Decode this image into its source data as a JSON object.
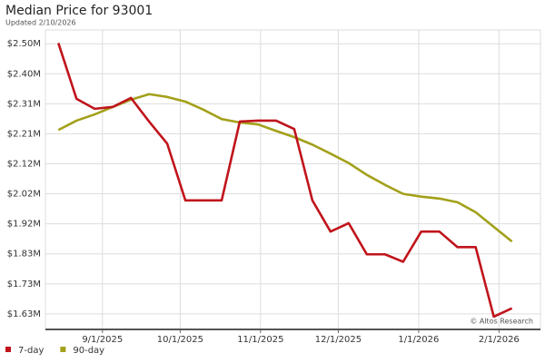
{
  "chart_data": {
    "type": "line",
    "title": "Median Price for 93001",
    "subtitle": "Updated 2/10/2026",
    "annotation": "© Altos Research",
    "x": [
      "2025-08-15",
      "2025-08-22",
      "2025-08-29",
      "2025-09-05",
      "2025-09-12",
      "2025-09-19",
      "2025-09-26",
      "2025-10-03",
      "2025-10-10",
      "2025-10-17",
      "2025-10-24",
      "2025-10-31",
      "2025-11-07",
      "2025-11-14",
      "2025-11-21",
      "2025-11-28",
      "2025-12-05",
      "2025-12-12",
      "2025-12-19",
      "2025-12-26",
      "2026-01-02",
      "2026-01-09",
      "2026-01-16",
      "2026-01-23",
      "2026-01-30",
      "2026-02-06"
    ],
    "series": [
      {
        "name": "7-day",
        "color": "#c0141c",
        "values": [
          2503000,
          2324000,
          2292000,
          2298000,
          2327000,
          2251000,
          2180000,
          1998000,
          1998000,
          1998000,
          2251000,
          2254000,
          2254000,
          2227000,
          1998000,
          1898000,
          1925000,
          1825000,
          1825000,
          1801000,
          1898000,
          1898000,
          1848000,
          1848000,
          1625000,
          1652000
        ]
      },
      {
        "name": "90-day",
        "color": "#a3a01a",
        "values": [
          2224000,
          2254000,
          2274000,
          2298000,
          2321000,
          2339000,
          2330000,
          2315000,
          2289000,
          2259000,
          2248000,
          2242000,
          2221000,
          2201000,
          2177000,
          2148000,
          2118000,
          2080000,
          2048000,
          2019000,
          2010000,
          2004000,
          1992000,
          1960000,
          1913000,
          1866000
        ]
      }
    ],
    "xlim": [
      "2025-08-10",
      "2026-02-17"
    ],
    "xticks": [
      {
        "value": "2025-09-01",
        "label": "9/1/2025"
      },
      {
        "value": "2025-10-01",
        "label": "10/1/2025"
      },
      {
        "value": "2025-11-01",
        "label": "11/1/2025"
      },
      {
        "value": "2025-12-01",
        "label": "12/1/2025"
      },
      {
        "value": "2026-01-01",
        "label": "1/1/2026"
      },
      {
        "value": "2026-02-01",
        "label": "2/1/2026"
      }
    ],
    "ylim": [
      1584000,
      2545000
    ],
    "yticks": [
      {
        "value": 1634000,
        "label": "$1.63M"
      },
      {
        "value": 1730300,
        "label": "$1.73M"
      },
      {
        "value": 1826600,
        "label": "$1.83M"
      },
      {
        "value": 1922900,
        "label": "$1.92M"
      },
      {
        "value": 2019200,
        "label": "$2.02M"
      },
      {
        "value": 2115500,
        "label": "$2.12M"
      },
      {
        "value": 2211800,
        "label": "$2.21M"
      },
      {
        "value": 2308100,
        "label": "$2.31M"
      },
      {
        "value": 2404400,
        "label": "$2.40M"
      },
      {
        "value": 2500700,
        "label": "$2.50M"
      }
    ],
    "grid": true,
    "legend": "bottom-left"
  }
}
